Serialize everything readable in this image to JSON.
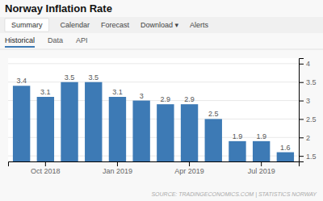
{
  "nav_items": [
    "Summary",
    "Calendar",
    "Forecast",
    "Download ▾",
    "Alerts"
  ],
  "sub_nav_items": [
    "Historical",
    "Data",
    "API"
  ],
  "active_sub_nav": "Historical",
  "chart_data": {
    "type": "bar",
    "title": "Norway Inflation Rate",
    "categories": [
      null,
      "Oct 2018",
      null,
      null,
      "Jan 2019",
      null,
      null,
      "Apr 2019",
      null,
      null,
      "Jul 2019",
      null
    ],
    "values": [
      3.4,
      3.1,
      3.5,
      3.5,
      3.1,
      3.0,
      2.9,
      2.9,
      2.5,
      1.9,
      1.9,
      1.6
    ],
    "color": "#3d7ab5",
    "ylim": [
      1.35,
      4.15
    ],
    "yticks": [
      1.5,
      2.0,
      2.5,
      3.0,
      3.5,
      4.0
    ],
    "grid": true,
    "data_labels": true,
    "source": "SOURCE: TRADINGECONOMICS.COM | STATISTICS NORWAY"
  }
}
